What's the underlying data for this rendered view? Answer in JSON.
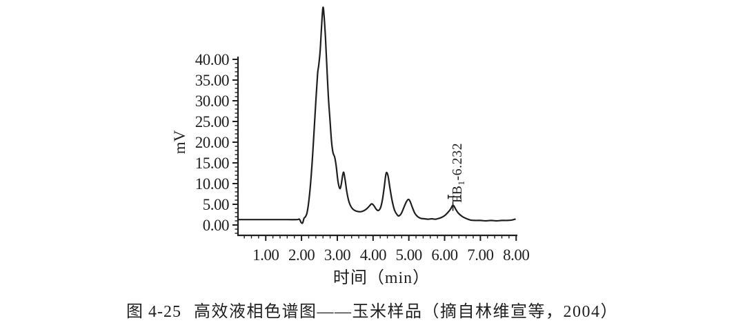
{
  "figure": {
    "caption_number": "图 4-25",
    "caption_text": "高效液相色谱图——玉米样品（摘自林维宣等，2004）",
    "ink_color": "#1f1f1f",
    "background_color": "#ffffff"
  },
  "chart_data": {
    "type": "line",
    "title": "",
    "xlabel": "时间（min）",
    "ylabel": "mV",
    "x_axis_range_min": [
      0.22,
      8.05
    ],
    "y_axis_range_mv": [
      -2.5,
      43.5
    ],
    "grid": false,
    "legend": "none",
    "x_tick_values": [
      1,
      2,
      3,
      4,
      5,
      6,
      7,
      8
    ],
    "x_tick_labels": [
      "1.00",
      "2.00",
      "3.00",
      "4.00",
      "5.00",
      "6.00",
      "7.00",
      "8.00"
    ],
    "x_minor_tick_step": 0.2,
    "y_tick_values": [
      0,
      5,
      10,
      15,
      20,
      25,
      30,
      35,
      40
    ],
    "y_tick_labels": [
      "0.00",
      "5.00",
      "10.00",
      "15.00",
      "20.00",
      "25.00",
      "30.00",
      "35.00",
      "40.00"
    ],
    "y_minor_tick_step": 1,
    "series": [
      {
        "name": "chromatogram-trace",
        "units": [
          "min",
          "mV"
        ],
        "points": [
          [
            0.23,
            1.3
          ],
          [
            0.7,
            1.3
          ],
          [
            1.2,
            1.3
          ],
          [
            1.6,
            1.3
          ],
          [
            1.88,
            1.3
          ],
          [
            1.94,
            1.4
          ],
          [
            1.99,
            0.6
          ],
          [
            2.03,
            0.5
          ],
          [
            2.07,
            1.6
          ],
          [
            2.11,
            2.0
          ],
          [
            2.16,
            3.2
          ],
          [
            2.22,
            7.0
          ],
          [
            2.28,
            13.0
          ],
          [
            2.34,
            21.0
          ],
          [
            2.4,
            30.0
          ],
          [
            2.45,
            36.5
          ],
          [
            2.48,
            38.5
          ],
          [
            2.52,
            42.0
          ],
          [
            2.56,
            48.0
          ],
          [
            2.6,
            52.5
          ],
          [
            2.63,
            50.5
          ],
          [
            2.67,
            45.0
          ],
          [
            2.71,
            38.0
          ],
          [
            2.75,
            31.0
          ],
          [
            2.79,
            26.0
          ],
          [
            2.84,
            20.0
          ],
          [
            2.88,
            17.5
          ],
          [
            2.93,
            16.3
          ],
          [
            2.97,
            14.2
          ],
          [
            3.02,
            10.5
          ],
          [
            3.07,
            8.8
          ],
          [
            3.11,
            9.8
          ],
          [
            3.15,
            12.0
          ],
          [
            3.18,
            12.7
          ],
          [
            3.22,
            10.8
          ],
          [
            3.27,
            7.8
          ],
          [
            3.33,
            5.5
          ],
          [
            3.4,
            4.2
          ],
          [
            3.47,
            3.6
          ],
          [
            3.55,
            3.3
          ],
          [
            3.64,
            3.2
          ],
          [
            3.73,
            3.4
          ],
          [
            3.82,
            3.9
          ],
          [
            3.9,
            4.6
          ],
          [
            3.96,
            5.1
          ],
          [
            4.02,
            4.7
          ],
          [
            4.09,
            3.8
          ],
          [
            4.15,
            3.5
          ],
          [
            4.21,
            4.2
          ],
          [
            4.26,
            6.0
          ],
          [
            4.31,
            9.0
          ],
          [
            4.35,
            11.8
          ],
          [
            4.38,
            12.7
          ],
          [
            4.42,
            11.8
          ],
          [
            4.47,
            9.0
          ],
          [
            4.53,
            6.0
          ],
          [
            4.6,
            3.6
          ],
          [
            4.67,
            2.5
          ],
          [
            4.72,
            2.2
          ],
          [
            4.79,
            2.8
          ],
          [
            4.86,
            4.2
          ],
          [
            4.93,
            5.6
          ],
          [
            4.99,
            6.2
          ],
          [
            5.04,
            5.6
          ],
          [
            5.1,
            4.2
          ],
          [
            5.17,
            2.8
          ],
          [
            5.25,
            2.0
          ],
          [
            5.34,
            1.6
          ],
          [
            5.44,
            1.5
          ],
          [
            5.54,
            1.4
          ],
          [
            5.64,
            1.5
          ],
          [
            5.74,
            1.4
          ],
          [
            5.84,
            1.6
          ],
          [
            5.93,
            1.9
          ],
          [
            6.02,
            2.4
          ],
          [
            6.1,
            3.1
          ],
          [
            6.17,
            3.9
          ],
          [
            6.22,
            4.7
          ],
          [
            6.26,
            4.6
          ],
          [
            6.31,
            3.8
          ],
          [
            6.37,
            3.0
          ],
          [
            6.44,
            2.4
          ],
          [
            6.52,
            1.9
          ],
          [
            6.62,
            1.5
          ],
          [
            6.72,
            1.2
          ],
          [
            6.85,
            1.1
          ],
          [
            7.0,
            1.1
          ],
          [
            7.15,
            1.0
          ],
          [
            7.3,
            1.1
          ],
          [
            7.45,
            1.0
          ],
          [
            7.6,
            1.1
          ],
          [
            7.75,
            1.1
          ],
          [
            7.88,
            1.2
          ],
          [
            7.97,
            1.4
          ]
        ]
      }
    ],
    "peak_annotation": {
      "compound": "FB",
      "subscript": "1",
      "separator": "-",
      "retention_time": "6.232",
      "full_label": "FB1-6.232",
      "peak_time_min": 6.232,
      "peak_height_mv": 4.7
    },
    "peak_marker": {
      "bar_t1": 6.1,
      "bar_t2": 6.45,
      "bar_mv": 6.8,
      "cap_half_mv": 0.5,
      "apex_tick_t": 6.232,
      "apex_tick_top_mv": 5.6,
      "apex_tick_bottom_mv": 3.4
    }
  }
}
